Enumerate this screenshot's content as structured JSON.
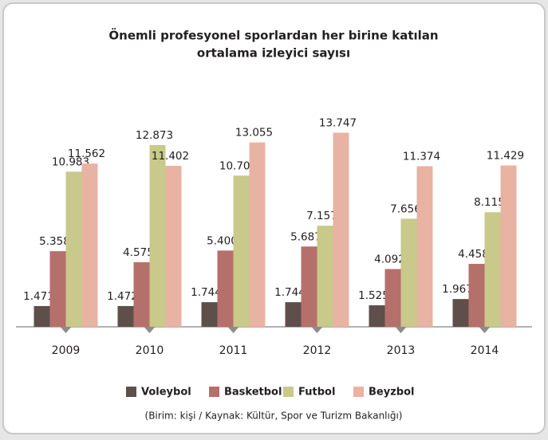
{
  "chart_data": {
    "type": "bar",
    "title": [
      "Önemli profesyonel sporlardan her birine katılan",
      "ortalama izleyici sayısı"
    ],
    "categories": [
      "2009",
      "2010",
      "2011",
      "2012",
      "2013",
      "2014"
    ],
    "series": [
      {
        "name": "Voleybol",
        "color": "#5e4f4a",
        "values": [
          1471,
          1472,
          1744,
          1744,
          1525,
          1967
        ],
        "value_labels": [
          "1.471",
          "1.472",
          "1.744",
          "1.744",
          "1.525",
          "1.967"
        ]
      },
      {
        "name": "Basketbol",
        "color": "#b5706b",
        "values": [
          5358,
          4575,
          5400,
          5687,
          4092,
          4458
        ],
        "value_labels": [
          "5.358",
          "4.575",
          "5.400",
          "5.687",
          "4.092",
          "4.458"
        ]
      },
      {
        "name": "Futbol",
        "color": "#c8c98a",
        "values": [
          10983,
          12873,
          10709,
          7157,
          7656,
          8115
        ],
        "value_labels": [
          "10.983",
          "12.873",
          "10.709",
          "7.157",
          "7.656",
          "8.115"
        ]
      },
      {
        "name": "Beyzbol",
        "color": "#e8b3a3",
        "values": [
          11562,
          11402,
          13055,
          13747,
          11374,
          11429
        ],
        "value_labels": [
          "11.562",
          "11.402",
          "13.055",
          "13.747",
          "11.374",
          "11.429"
        ]
      }
    ],
    "ylim": [
      0,
      14000
    ],
    "note": "(Birim: kişi / Kaynak: Kültür, Spor ve Turizm Bakanlığı)"
  }
}
